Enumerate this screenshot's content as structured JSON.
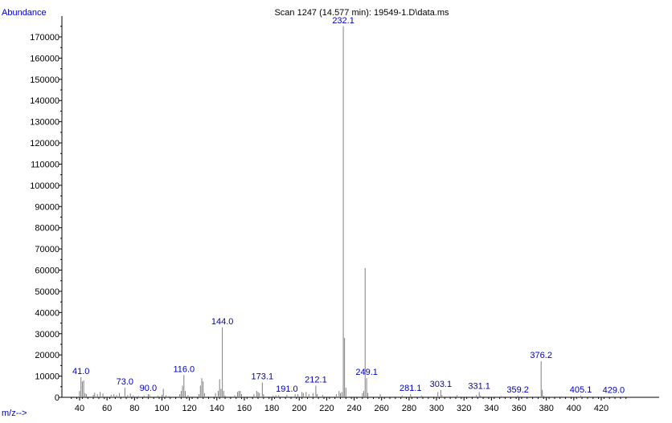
{
  "chart_data": {
    "type": "bar",
    "title": "Scan 1247 (14.577 min): 19549-1.D\\data.ms",
    "ylabel": "Abundance",
    "xlabel": "m/z-->",
    "xlim": [
      33,
      440
    ],
    "ylim": [
      0,
      180000
    ],
    "x_ticks": [
      40,
      60,
      80,
      100,
      120,
      140,
      160,
      180,
      200,
      220,
      240,
      260,
      280,
      300,
      320,
      340,
      360,
      380,
      400,
      420
    ],
    "y_ticks": [
      0,
      10000,
      20000,
      30000,
      40000,
      50000,
      60000,
      70000,
      80000,
      90000,
      100000,
      110000,
      120000,
      130000,
      140000,
      150000,
      160000,
      170000
    ],
    "grid": false,
    "colors": {
      "bars": "#808080",
      "axes": "#000000",
      "labels": "#0000c0"
    },
    "peaks": [
      {
        "mz": 40.0,
        "abundance": 3000
      },
      {
        "mz": 41.0,
        "abundance": 9500,
        "label": "41.0"
      },
      {
        "mz": 42.0,
        "abundance": 7500
      },
      {
        "mz": 43.0,
        "abundance": 8000
      },
      {
        "mz": 44.0,
        "abundance": 2000
      },
      {
        "mz": 45.0,
        "abundance": 1500
      },
      {
        "mz": 50.0,
        "abundance": 1200
      },
      {
        "mz": 51.0,
        "abundance": 2200
      },
      {
        "mz": 53.0,
        "abundance": 1500
      },
      {
        "mz": 55.0,
        "abundance": 2500
      },
      {
        "mz": 57.0,
        "abundance": 1800
      },
      {
        "mz": 63.0,
        "abundance": 1200
      },
      {
        "mz": 65.0,
        "abundance": 1500
      },
      {
        "mz": 67.0,
        "abundance": 1000
      },
      {
        "mz": 69.0,
        "abundance": 2000
      },
      {
        "mz": 73.0,
        "abundance": 4500,
        "label": "73.0"
      },
      {
        "mz": 75.0,
        "abundance": 1000
      },
      {
        "mz": 77.0,
        "abundance": 1800
      },
      {
        "mz": 79.0,
        "abundance": 800
      },
      {
        "mz": 83.0,
        "abundance": 600
      },
      {
        "mz": 87.0,
        "abundance": 800
      },
      {
        "mz": 90.0,
        "abundance": 1500,
        "label": "90.0"
      },
      {
        "mz": 91.0,
        "abundance": 1200
      },
      {
        "mz": 97.0,
        "abundance": 800
      },
      {
        "mz": 100.0,
        "abundance": 1200
      },
      {
        "mz": 101.0,
        "abundance": 4000
      },
      {
        "mz": 103.0,
        "abundance": 1000
      },
      {
        "mz": 105.0,
        "abundance": 600
      },
      {
        "mz": 113.0,
        "abundance": 1500
      },
      {
        "mz": 114.0,
        "abundance": 3000
      },
      {
        "mz": 115.0,
        "abundance": 5500
      },
      {
        "mz": 116.0,
        "abundance": 10500,
        "label": "116.0"
      },
      {
        "mz": 117.0,
        "abundance": 3000
      },
      {
        "mz": 119.0,
        "abundance": 1000
      },
      {
        "mz": 127.0,
        "abundance": 1500
      },
      {
        "mz": 128.0,
        "abundance": 5500
      },
      {
        "mz": 129.0,
        "abundance": 9000
      },
      {
        "mz": 130.0,
        "abundance": 7500
      },
      {
        "mz": 131.0,
        "abundance": 2000
      },
      {
        "mz": 139.0,
        "abundance": 2000
      },
      {
        "mz": 141.0,
        "abundance": 3000
      },
      {
        "mz": 142.0,
        "abundance": 8500
      },
      {
        "mz": 143.0,
        "abundance": 4000
      },
      {
        "mz": 144.0,
        "abundance": 33000,
        "label": "144.0"
      },
      {
        "mz": 145.0,
        "abundance": 3000
      },
      {
        "mz": 146.0,
        "abundance": 800
      },
      {
        "mz": 153.0,
        "abundance": 1000
      },
      {
        "mz": 155.0,
        "abundance": 2500
      },
      {
        "mz": 156.0,
        "abundance": 3000
      },
      {
        "mz": 157.0,
        "abundance": 3000
      },
      {
        "mz": 158.0,
        "abundance": 1500
      },
      {
        "mz": 167.0,
        "abundance": 1500
      },
      {
        "mz": 169.0,
        "abundance": 3000
      },
      {
        "mz": 170.0,
        "abundance": 2500
      },
      {
        "mz": 171.0,
        "abundance": 2000
      },
      {
        "mz": 173.1,
        "abundance": 7000,
        "label": "173.1"
      },
      {
        "mz": 174.0,
        "abundance": 1500
      },
      {
        "mz": 181.0,
        "abundance": 800
      },
      {
        "mz": 183.0,
        "abundance": 1000
      },
      {
        "mz": 185.0,
        "abundance": 1000
      },
      {
        "mz": 191.0,
        "abundance": 1200,
        "label": "191.0"
      },
      {
        "mz": 197.0,
        "abundance": 1500
      },
      {
        "mz": 199.0,
        "abundance": 1500
      },
      {
        "mz": 202.0,
        "abundance": 2500
      },
      {
        "mz": 203.0,
        "abundance": 2000
      },
      {
        "mz": 205.0,
        "abundance": 2500
      },
      {
        "mz": 207.0,
        "abundance": 1500
      },
      {
        "mz": 210.0,
        "abundance": 2000
      },
      {
        "mz": 212.1,
        "abundance": 5500,
        "label": "212.1"
      },
      {
        "mz": 213.0,
        "abundance": 1500
      },
      {
        "mz": 217.0,
        "abundance": 1200
      },
      {
        "mz": 227.0,
        "abundance": 1500
      },
      {
        "mz": 229.0,
        "abundance": 3000
      },
      {
        "mz": 230.0,
        "abundance": 2000
      },
      {
        "mz": 231.0,
        "abundance": 2500
      },
      {
        "mz": 232.1,
        "abundance": 175000,
        "label": "232.1"
      },
      {
        "mz": 233.0,
        "abundance": 28000
      },
      {
        "mz": 234.0,
        "abundance": 4500
      },
      {
        "mz": 246.0,
        "abundance": 2000
      },
      {
        "mz": 247.0,
        "abundance": 3000
      },
      {
        "mz": 248.0,
        "abundance": 61000
      },
      {
        "mz": 249.1,
        "abundance": 9000,
        "label": "249.1"
      },
      {
        "mz": 250.0,
        "abundance": 2000
      },
      {
        "mz": 259.0,
        "abundance": 1500
      },
      {
        "mz": 275.0,
        "abundance": 800
      },
      {
        "mz": 281.1,
        "abundance": 1500,
        "label": "281.1"
      },
      {
        "mz": 289.0,
        "abundance": 800
      },
      {
        "mz": 301.0,
        "abundance": 2500
      },
      {
        "mz": 303.1,
        "abundance": 3500,
        "label": "303.1"
      },
      {
        "mz": 304.0,
        "abundance": 1000
      },
      {
        "mz": 315.0,
        "abundance": 1000
      },
      {
        "mz": 329.0,
        "abundance": 1000
      },
      {
        "mz": 331.1,
        "abundance": 2500,
        "label": "331.1"
      },
      {
        "mz": 332.0,
        "abundance": 800
      },
      {
        "mz": 347.0,
        "abundance": 600
      },
      {
        "mz": 359.2,
        "abundance": 800,
        "label": "359.2"
      },
      {
        "mz": 361.0,
        "abundance": 500
      },
      {
        "mz": 376.2,
        "abundance": 17000,
        "label": "376.2"
      },
      {
        "mz": 377.0,
        "abundance": 3500
      },
      {
        "mz": 378.0,
        "abundance": 800
      },
      {
        "mz": 391.0,
        "abundance": 500
      },
      {
        "mz": 405.1,
        "abundance": 800,
        "label": "405.1"
      },
      {
        "mz": 429.0,
        "abundance": 500,
        "label": "429.0"
      }
    ]
  }
}
